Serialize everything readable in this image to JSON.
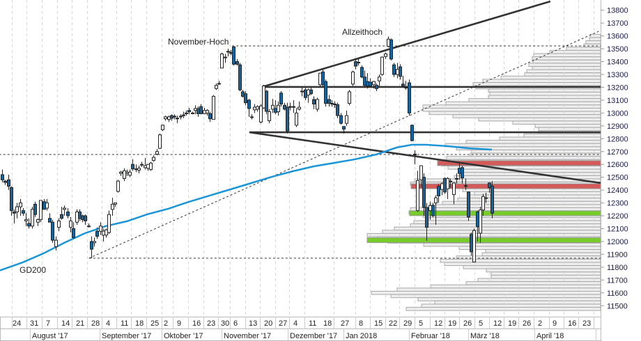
{
  "chart_data": {
    "type": "candlestick",
    "ylim": [
      11380,
      13880
    ],
    "y_ticks": [
      "13800",
      "13700",
      "13600",
      "13500",
      "13400",
      "13300",
      "13200",
      "13100",
      "13000",
      "12900",
      "12800",
      "12700",
      "12600",
      "12500",
      "12400",
      "12300",
      "12200",
      "12100",
      "12000",
      "11900",
      "11800",
      "11700",
      "11600",
      "11500"
    ],
    "x_day_ticks": [
      "24",
      "31",
      "7",
      "14",
      "21",
      "28",
      "4",
      "11",
      "18",
      "25",
      "2",
      "9",
      "16",
      "23",
      "30",
      "6",
      "13",
      "20",
      "27",
      "4",
      "11",
      "18",
      "27",
      "8",
      "15",
      "22",
      "29",
      "5",
      "12",
      "19",
      "26",
      "5",
      "12",
      "19",
      "26",
      "2",
      "9",
      "16",
      "23"
    ],
    "x_month_labels": [
      "August '17",
      "September '17",
      "Oktober '17",
      "November '17",
      "Dezember '17",
      "Jan 2018",
      "Februar '18",
      "März '18",
      "April '18"
    ],
    "grid": "vertical dashed at weekly ticks",
    "annotations": [
      {
        "text": "November-Hoch",
        "price": 13525
      },
      {
        "text": "Allzeithoch",
        "price": 13596
      },
      {
        "text": "GD200",
        "price": 11780
      }
    ],
    "colors": {
      "down_candle": "#1464a0",
      "up_candle": "#ffffff",
      "gd200": "#1a96d8",
      "resistance_zone": "#d45a5a",
      "support_zone": "#77cc2a",
      "trendline": "#333333",
      "profile_fill": "#eeeeee",
      "profile_border": "#a8a8a8"
    },
    "candles_ohlc": [
      [
        12520,
        12560,
        12460,
        12480
      ],
      [
        12470,
        12480,
        12440,
        12460
      ],
      [
        12480,
        12520,
        12400,
        12430
      ],
      [
        12420,
        12430,
        12200,
        12240
      ],
      [
        12230,
        12250,
        12140,
        12220
      ],
      [
        12230,
        12300,
        12180,
        12270
      ],
      [
        12270,
        12330,
        12200,
        12300
      ],
      [
        12240,
        12260,
        12200,
        12220
      ],
      [
        12160,
        12220,
        12120,
        12170
      ],
      [
        12140,
        12180,
        12100,
        12120
      ],
      [
        12120,
        12270,
        12100,
        12250
      ],
      [
        12290,
        12310,
        12190,
        12210
      ],
      [
        12150,
        12180,
        12120,
        12170
      ],
      [
        12170,
        12310,
        12150,
        12320
      ],
      [
        12310,
        12330,
        12250,
        12250
      ],
      [
        12260,
        12330,
        12240,
        12300
      ],
      [
        12180,
        12220,
        12150,
        12150
      ],
      [
        12150,
        12170,
        11990,
        12010
      ],
      [
        11960,
        12040,
        11930,
        12010
      ],
      [
        12110,
        12180,
        12080,
        12160
      ],
      [
        12210,
        12270,
        12170,
        12180
      ],
      [
        12250,
        12280,
        12200,
        12260
      ],
      [
        12230,
        12260,
        12180,
        12200
      ],
      [
        12110,
        12190,
        12070,
        12160
      ],
      [
        12100,
        12150,
        12020,
        12030
      ],
      [
        12150,
        12250,
        12130,
        12230
      ],
      [
        12230,
        12250,
        12160,
        12180
      ],
      [
        12200,
        12210,
        12150,
        12170
      ],
      [
        12200,
        12210,
        12130,
        12160
      ],
      [
        12120,
        12140,
        12110,
        12120
      ],
      [
        12000,
        12040,
        11870,
        11940
      ],
      [
        11990,
        12030,
        11960,
        12000
      ],
      [
        12080,
        12110,
        12020,
        12040
      ],
      [
        12080,
        12150,
        12050,
        12120
      ],
      [
        12050,
        12100,
        12000,
        12080
      ],
      [
        12050,
        12100,
        12030,
        12090
      ],
      [
        12070,
        12240,
        12060,
        12210
      ],
      [
        12250,
        12340,
        12200,
        12290
      ],
      [
        12290,
        12300,
        12270,
        12300
      ],
      [
        12390,
        12480,
        12380,
        12470
      ],
      [
        12530,
        12550,
        12510,
        12540
      ],
      [
        12490,
        12570,
        12470,
        12550
      ],
      [
        12530,
        12560,
        12510,
        12540
      ],
      [
        12515,
        12560,
        12500,
        12540
      ],
      [
        12600,
        12640,
        12550,
        12565
      ],
      [
        12560,
        12600,
        12540,
        12565
      ],
      [
        12555,
        12590,
        12530,
        12570
      ],
      [
        12595,
        12620,
        12580,
        12600
      ],
      [
        12575,
        12650,
        12560,
        12590
      ],
      [
        12570,
        12600,
        12550,
        12600
      ],
      [
        12560,
        12620,
        12550,
        12610
      ],
      [
        12630,
        12670,
        12620,
        12655
      ],
      [
        12680,
        12720,
        12670,
        12700
      ],
      [
        12725,
        12840,
        12720,
        12830
      ],
      [
        12870,
        12910,
        12860,
        12905
      ],
      [
        12955,
        12980,
        12940,
        12970
      ],
      [
        12950,
        12980,
        12930,
        12970
      ],
      [
        12980,
        12990,
        12940,
        12960
      ],
      [
        12975,
        12990,
        12950,
        12975
      ],
      [
        12960,
        12980,
        12920,
        12960
      ],
      [
        12970,
        12990,
        12950,
        12975
      ],
      [
        12980,
        13010,
        12960,
        12985
      ],
      [
        13000,
        13020,
        12980,
        13000
      ],
      [
        13020,
        13040,
        12990,
        13010
      ],
      [
        13000,
        13010,
        12990,
        13000
      ],
      [
        13020,
        13060,
        12990,
        13035
      ],
      [
        13035,
        13050,
        12970,
        12995
      ],
      [
        13050,
        13070,
        12990,
        12995
      ],
      [
        12995,
        13040,
        12990,
        13020
      ],
      [
        13000,
        13030,
        12980,
        13020
      ],
      [
        12995,
        13010,
        12930,
        12955
      ],
      [
        12950,
        13140,
        12950,
        13130
      ],
      [
        13190,
        13230,
        13180,
        13215
      ],
      [
        13230,
        13250,
        13220,
        13230
      ],
      [
        13350,
        13470,
        13350,
        13460
      ],
      [
        13430,
        13460,
        13390,
        13435
      ],
      [
        13480,
        13500,
        13440,
        13480
      ],
      [
        13470,
        13490,
        13450,
        13470
      ],
      [
        13515,
        13525,
        13370,
        13380
      ],
      [
        13400,
        13420,
        13370,
        13380
      ],
      [
        13375,
        13390,
        13170,
        13180
      ],
      [
        13165,
        13180,
        13120,
        13130
      ],
      [
        13150,
        13170,
        13060,
        13080
      ],
      [
        13100,
        13110,
        12970,
        13035
      ],
      [
        12970,
        12990,
        12950,
        12965
      ],
      [
        13025,
        13070,
        13000,
        13045
      ],
      [
        13030,
        13060,
        13010,
        13050
      ],
      [
        12930,
        13070,
        12920,
        13055
      ],
      [
        13040,
        13220,
        13030,
        13210
      ],
      [
        13170,
        13180,
        12990,
        13013
      ],
      [
        12940,
        13030,
        12920,
        13010
      ],
      [
        13030,
        13110,
        13000,
        13060
      ],
      [
        13035,
        13100,
        12990,
        13005
      ],
      [
        13010,
        13090,
        12980,
        13060
      ],
      [
        13155,
        13170,
        13050,
        13070
      ],
      [
        13060,
        13080,
        13020,
        13030
      ],
      [
        13045,
        13080,
        12840,
        12860
      ],
      [
        13050,
        13080,
        13020,
        13050
      ],
      [
        13045,
        13100,
        13000,
        13050
      ],
      [
        12905,
        13040,
        12890,
        13000
      ],
      [
        13030,
        13090,
        13020,
        13045
      ],
      [
        13170,
        13200,
        13130,
        13170
      ],
      [
        13180,
        13200,
        13100,
        13120
      ],
      [
        13140,
        13190,
        13080,
        13180
      ],
      [
        13180,
        13200,
        13140,
        13150
      ],
      [
        13105,
        13130,
        13030,
        13070
      ],
      [
        13030,
        13120,
        13010,
        13105
      ],
      [
        13220,
        13310,
        13200,
        13310
      ],
      [
        13320,
        13340,
        13200,
        13220
      ],
      [
        13245,
        13260,
        13050,
        13075
      ],
      [
        13105,
        13140,
        13050,
        13075
      ],
      [
        13075,
        13100,
        13050,
        13075
      ],
      [
        13070,
        13090,
        13040,
        13070
      ],
      [
        13065,
        13080,
        12960,
        12980
      ],
      [
        12980,
        13000,
        12910,
        12920
      ],
      [
        12895,
        12900,
        12840,
        12875
      ],
      [
        12920,
        13020,
        12900,
        12980
      ],
      [
        13075,
        13180,
        13060,
        13165
      ],
      [
        13225,
        13330,
        13210,
        13320
      ],
      [
        13400,
        13420,
        13340,
        13365
      ],
      [
        13395,
        13420,
        13370,
        13395
      ],
      [
        13355,
        13370,
        13270,
        13280
      ],
      [
        13280,
        13330,
        13200,
        13215
      ],
      [
        13245,
        13310,
        13190,
        13210
      ],
      [
        13240,
        13270,
        13200,
        13210
      ],
      [
        13220,
        13250,
        13190,
        13245
      ],
      [
        13215,
        13230,
        13170,
        13190
      ],
      [
        13250,
        13300,
        13210,
        13280
      ],
      [
        13300,
        13440,
        13290,
        13435
      ],
      [
        13440,
        13470,
        13420,
        13460
      ],
      [
        13520,
        13596,
        13510,
        13575
      ],
      [
        13570,
        13580,
        13410,
        13420
      ],
      [
        13375,
        13390,
        13280,
        13300
      ],
      [
        13300,
        13390,
        13270,
        13340
      ],
      [
        13360,
        13380,
        13260,
        13285
      ],
      [
        13225,
        13290,
        13200,
        13210
      ],
      [
        13200,
        13250,
        13180,
        13200
      ],
      [
        13235,
        13260,
        12980,
        13000
      ],
      [
        12905,
        12910,
        12780,
        12785
      ],
      [
        12680,
        12710,
        12600,
        12675
      ],
      [
        12240,
        12550,
        12230,
        12475
      ],
      [
        12480,
        12590,
        12420,
        12590
      ],
      [
        12500,
        12530,
        12200,
        12265
      ],
      [
        12265,
        12300,
        12005,
        12110
      ],
      [
        12240,
        12310,
        12170,
        12280
      ],
      [
        12280,
        12300,
        12190,
        12200
      ],
      [
        12300,
        12360,
        12130,
        12340
      ],
      [
        12430,
        12450,
        12300,
        12355
      ],
      [
        12405,
        12460,
        12360,
        12450
      ],
      [
        12490,
        12500,
        12370,
        12385
      ],
      [
        12410,
        12500,
        12330,
        12490
      ],
      [
        12470,
        12490,
        12420,
        12470
      ],
      [
        12365,
        12460,
        12290,
        12455
      ],
      [
        12490,
        12530,
        12450,
        12490
      ],
      [
        12570,
        12610,
        12480,
        12530
      ],
      [
        12575,
        12590,
        12450,
        12495
      ],
      [
        12435,
        12490,
        12400,
        12435
      ],
      [
        12385,
        12390,
        12160,
        12190
      ],
      [
        12055,
        12070,
        11890,
        11920
      ],
      [
        11840,
        12100,
        11840,
        12085
      ],
      [
        12230,
        12240,
        12000,
        12115
      ],
      [
        12065,
        12270,
        11990,
        12245
      ],
      [
        12245,
        12370,
        12200,
        12350
      ],
      [
        12340,
        12380,
        12300,
        12340
      ],
      [
        12455,
        12460,
        12380,
        12420
      ],
      [
        12430,
        12470,
        12180,
        12220
      ]
    ],
    "gd200": {
      "name": "GD200",
      "points_day_index_price": [
        [
          0,
          11780
        ],
        [
          7,
          11838
        ],
        [
          14,
          11908
        ],
        [
          21,
          11990
        ],
        [
          28,
          12065
        ],
        [
          35,
          12120
        ],
        [
          42,
          12157
        ],
        [
          49,
          12212
        ],
        [
          56,
          12255
        ],
        [
          63,
          12309
        ],
        [
          70,
          12358
        ],
        [
          77,
          12406
        ],
        [
          84,
          12455
        ],
        [
          91,
          12504
        ],
        [
          98,
          12547
        ],
        [
          105,
          12585
        ],
        [
          112,
          12612
        ],
        [
          119,
          12640
        ],
        [
          126,
          12677
        ],
        [
          133,
          12732
        ],
        [
          138,
          12753
        ],
        [
          143,
          12753
        ],
        [
          150,
          12742
        ],
        [
          157,
          12726
        ],
        [
          165,
          12715
        ]
      ]
    },
    "trend_lines": [
      {
        "kind": "solid",
        "from": [
          87.6,
          13203
        ],
        "to": [
          184.7,
          13869
        ]
      },
      {
        "kind": "solid",
        "from": [
          87.6,
          13203
        ],
        "to": [
          201.6,
          13203
        ]
      },
      {
        "kind": "solid",
        "from": [
          83.3,
          12850
        ],
        "to": [
          201.6,
          12850
        ]
      },
      {
        "kind": "solid",
        "from": [
          83.3,
          12850
        ],
        "to": [
          201.6,
          12455
        ]
      },
      {
        "kind": "dashed",
        "from": [
          29.3,
          11870
        ],
        "to": [
          201.6,
          13642
        ]
      },
      {
        "kind": "dashed",
        "from": [
          77.5,
          13522
        ],
        "to": [
          201.6,
          13522
        ]
      },
      {
        "kind": "dashed",
        "from": [
          -1,
          12677
        ],
        "to": [
          201.6,
          12677
        ]
      },
      {
        "kind": "dashed",
        "from": [
          29.3,
          11870
        ],
        "to": [
          201.6,
          11870
        ]
      }
    ],
    "zones": [
      {
        "type": "resistance",
        "price": 12610,
        "from_day_index": 146.7
      },
      {
        "type": "resistance",
        "price": 12430,
        "from_day_index": 137.8
      },
      {
        "type": "support",
        "price": 12220,
        "from_day_index": 137.3
      },
      {
        "type": "support",
        "price": 12010,
        "from_day_index": 123
      }
    ],
    "volume_profile": {
      "top_price": 13600,
      "step": 25,
      "relative_volume": [
        15,
        16,
        21,
        24,
        49,
        73,
        96,
        98,
        97,
        103,
        98,
        106,
        109,
        143,
        169,
        183,
        179,
        161,
        159,
        161,
        189,
        222,
        255,
        255,
        246,
        212,
        175,
        126,
        94,
        89,
        89,
        110,
        145,
        193,
        223,
        207,
        185,
        187,
        221,
        234,
        228,
        219,
        204,
        203,
        210,
        267,
        273,
        245,
        198,
        181,
        189,
        205,
        227,
        245,
        273,
        275,
        255,
        247,
        268,
        273,
        296,
        313,
        335,
        320,
        306,
        254,
        203,
        165,
        170,
        207,
        230,
        224,
        197,
        164,
        157,
        157,
        176,
        193,
        244,
        292,
        329,
        301,
        262,
        238,
        257,
        279
      ]
    }
  }
}
